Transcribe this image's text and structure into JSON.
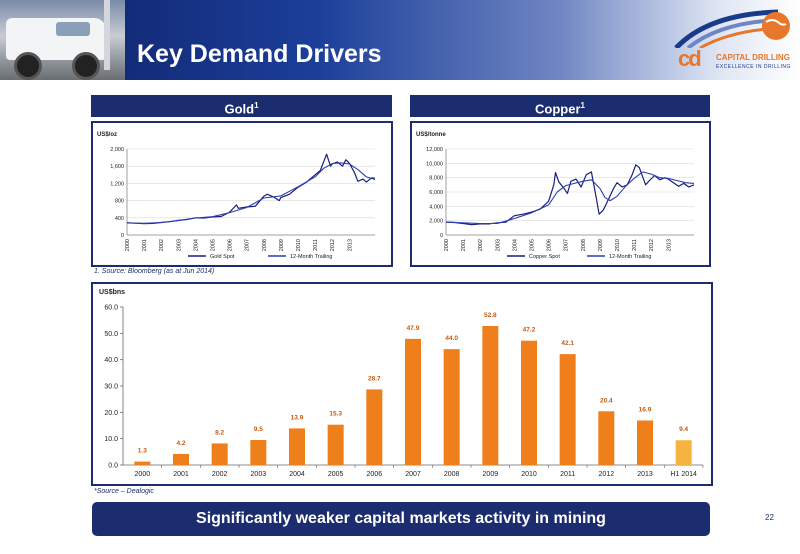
{
  "header": {
    "title": "Key Demand Drivers",
    "logo": {
      "mark": "cd",
      "name": "CAPITAL DRILLING",
      "tagline": "EXCELLENCE IN DRILLING"
    }
  },
  "panels": {
    "gold": {
      "title": "Gold",
      "sup": "1"
    },
    "copper": {
      "title": "Copper",
      "sup": "1"
    }
  },
  "footnote_1": "1.   Source: Bloomberg (as at Jun 2014)",
  "footnote_2": "*Source – Dealogic",
  "banner": "Significantly weaker capital markets activity in mining",
  "page_number": "22",
  "colors": {
    "navy": "#1b2d6f",
    "bar_orange": "#ee7f1a",
    "bar_highlight": "#f7b33f",
    "label_orange": "#c55a11"
  },
  "chart_data": [
    {
      "type": "line",
      "ylabel": "US$/oz",
      "ylim": [
        0,
        2000
      ],
      "yticks": [
        "0",
        "400",
        "800",
        "1,200",
        "1,600",
        "2,000"
      ],
      "x_categories": [
        "2000",
        "2001",
        "2002",
        "2003",
        "2004",
        "2005",
        "2006",
        "2007",
        "2008",
        "2009",
        "2010",
        "2011",
        "2012",
        "2013"
      ],
      "series": [
        {
          "name": "Gold Spot",
          "x": [
            2000.0,
            2000.5,
            2001.0,
            2001.5,
            2002.0,
            2002.5,
            2003.0,
            2003.5,
            2004.0,
            2004.5,
            2005.0,
            2005.5,
            2006.0,
            2006.4,
            2006.5,
            2007.0,
            2007.5,
            2008.0,
            2008.2,
            2008.6,
            2008.9,
            2009.0,
            2009.5,
            2010.0,
            2010.5,
            2011.0,
            2011.3,
            2011.67,
            2011.9,
            2012.0,
            2012.3,
            2012.6,
            2012.8,
            2013.0,
            2013.3,
            2013.5,
            2013.8,
            2014.0,
            2014.3,
            2014.5
          ],
          "values": [
            285,
            275,
            265,
            270,
            290,
            310,
            340,
            360,
            400,
            395,
            420,
            430,
            530,
            700,
            620,
            650,
            670,
            900,
            950,
            880,
            800,
            870,
            950,
            1110,
            1230,
            1400,
            1500,
            1880,
            1600,
            1650,
            1700,
            1600,
            1750,
            1670,
            1450,
            1250,
            1300,
            1230,
            1330,
            1320
          ]
        },
        {
          "name": "12-Month Trailing",
          "x": [
            2000.0,
            2001.0,
            2002.0,
            2003.0,
            2004.0,
            2005.0,
            2006.0,
            2007.0,
            2008.0,
            2009.0,
            2010.0,
            2011.0,
            2011.5,
            2012.0,
            2012.5,
            2013.0,
            2013.5,
            2014.0,
            2014.5
          ],
          "values": [
            280,
            272,
            290,
            335,
            395,
            425,
            520,
            640,
            860,
            910,
            1120,
            1350,
            1550,
            1660,
            1680,
            1650,
            1520,
            1350,
            1290
          ]
        }
      ]
    },
    {
      "type": "line",
      "ylabel": "US$/tonne",
      "ylim": [
        0,
        12000
      ],
      "yticks": [
        "0",
        "2,000",
        "4,000",
        "6,000",
        "8,000",
        "10,000",
        "12,000"
      ],
      "x_categories": [
        "2000",
        "2001",
        "2002",
        "2003",
        "2004",
        "2005",
        "2006",
        "2007",
        "2008",
        "2009",
        "2010",
        "2011",
        "2012",
        "2013"
      ],
      "series": [
        {
          "name": "Copper Spot",
          "x": [
            2000.0,
            2000.5,
            2001.0,
            2001.5,
            2002.0,
            2002.5,
            2003.0,
            2003.5,
            2004.0,
            2004.5,
            2005.0,
            2005.5,
            2006.0,
            2006.3,
            2006.4,
            2006.6,
            2006.9,
            2007.1,
            2007.3,
            2007.6,
            2007.9,
            2008.2,
            2008.5,
            2008.8,
            2008.95,
            2009.2,
            2009.5,
            2009.8,
            2010.0,
            2010.3,
            2010.6,
            2010.9,
            2011.1,
            2011.3,
            2011.67,
            2011.9,
            2012.2,
            2012.5,
            2012.8,
            2013.0,
            2013.3,
            2013.6,
            2013.9,
            2014.2,
            2014.5
          ],
          "values": [
            1800,
            1750,
            1600,
            1450,
            1550,
            1550,
            1700,
            1800,
            2700,
            2900,
            3200,
            3600,
            4700,
            7000,
            8700,
            7400,
            6500,
            5800,
            7500,
            7800,
            6700,
            8400,
            8800,
            5000,
            2900,
            3500,
            5000,
            6500,
            7300,
            6700,
            7000,
            8500,
            9800,
            9400,
            7000,
            7600,
            8300,
            7700,
            8000,
            7800,
            7300,
            6800,
            7200,
            6700,
            7000
          ]
        },
        {
          "name": "12-Month Trailing",
          "x": [
            2000.0,
            2001.0,
            2002.0,
            2003.0,
            2004.0,
            2005.0,
            2006.0,
            2006.5,
            2007.0,
            2007.5,
            2008.0,
            2008.5,
            2009.0,
            2009.3,
            2009.6,
            2010.0,
            2010.5,
            2011.0,
            2011.5,
            2012.0,
            2012.5,
            2013.0,
            2013.5,
            2014.0,
            2014.5
          ],
          "values": [
            1800,
            1700,
            1600,
            1600,
            2300,
            3100,
            4200,
            6000,
            6900,
            7200,
            7500,
            7700,
            6500,
            5200,
            4800,
            5400,
            6800,
            7900,
            8800,
            8500,
            8000,
            7900,
            7600,
            7300,
            7200
          ]
        }
      ]
    },
    {
      "type": "bar",
      "ylabel": "US$bns",
      "ylim": [
        0,
        60
      ],
      "yticks": [
        "0.0",
        "10.0",
        "20.0",
        "30.0",
        "40.0",
        "50.0",
        "60.0"
      ],
      "categories": [
        "2000",
        "2001",
        "2002",
        "2003",
        "2004",
        "2005",
        "2006",
        "2007",
        "2008",
        "2009",
        "2010",
        "2011",
        "2012",
        "2013",
        "H1 2014"
      ],
      "values": [
        1.3,
        4.2,
        8.2,
        9.5,
        13.9,
        15.3,
        28.7,
        47.9,
        44.0,
        52.8,
        47.2,
        42.1,
        20.4,
        16.9,
        9.4
      ],
      "labels": [
        "1.3",
        "4.2",
        "8.2",
        "9.5",
        "13.9",
        "15.3",
        "28.7",
        "47.9",
        "44.0",
        "52.8",
        "47.2",
        "42.1",
        "20.4",
        "16.9",
        "9.4"
      ]
    }
  ]
}
